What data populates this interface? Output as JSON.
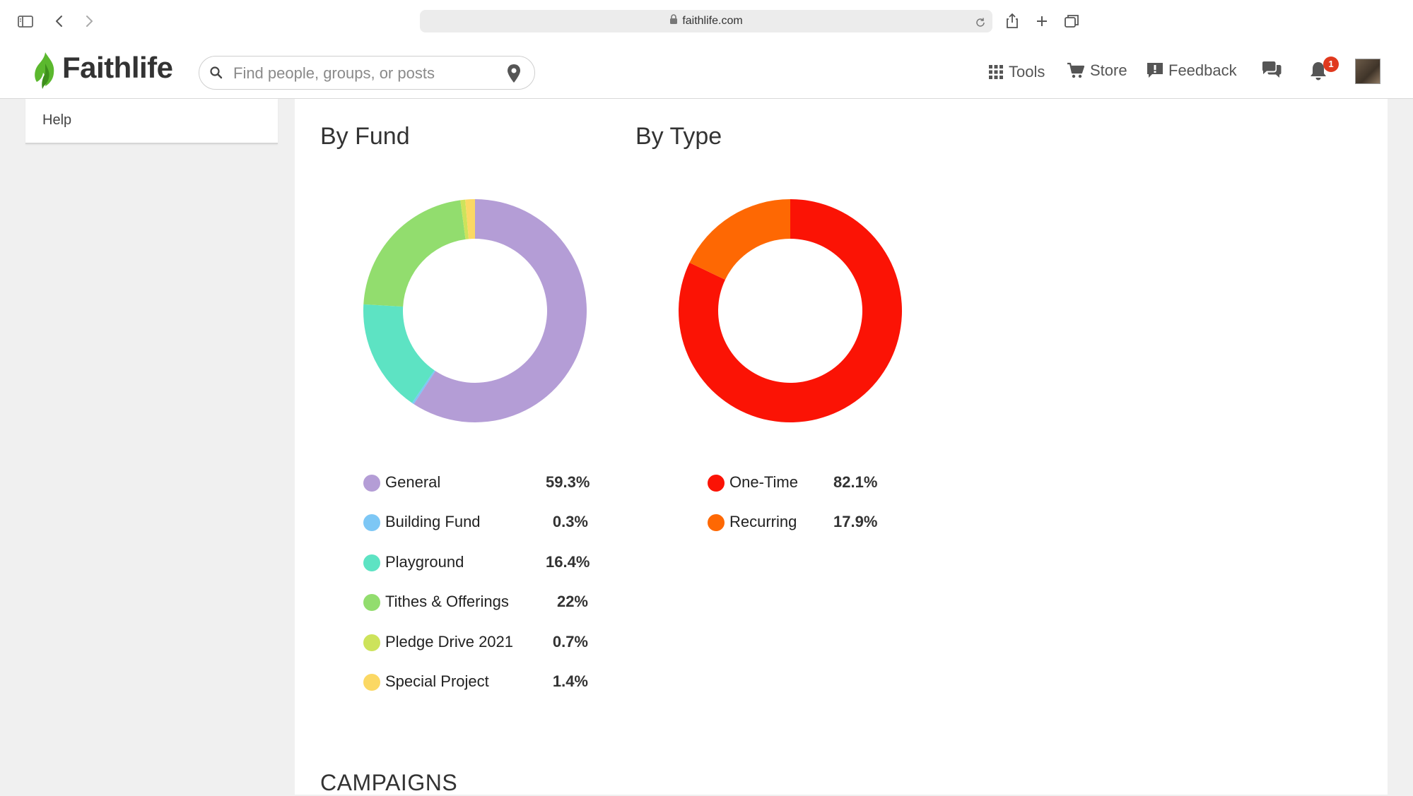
{
  "browser": {
    "url": "faithlife.com"
  },
  "header": {
    "brand": "Faithlife",
    "search_placeholder": "Find people, groups, or posts",
    "nav": {
      "tools": "Tools",
      "store": "Store",
      "feedback": "Feedback"
    },
    "notification_count": "1"
  },
  "sidebar": {
    "help": "Help"
  },
  "by_fund": {
    "title": "By Fund",
    "items": [
      {
        "label": "General",
        "percent": "59.3%",
        "color": "#b49dd6"
      },
      {
        "label": "Building Fund",
        "percent": "0.3%",
        "color": "#7dc7f5"
      },
      {
        "label": "Playground",
        "percent": "16.4%",
        "color": "#5de3c3"
      },
      {
        "label": "Tithes & Offerings",
        "percent": "22%",
        "color": "#92dd6e"
      },
      {
        "label": "Pledge Drive 2021",
        "percent": "0.7%",
        "color": "#cde35b"
      },
      {
        "label": "Special Project",
        "percent": "1.4%",
        "color": "#fbd864"
      }
    ]
  },
  "by_type": {
    "title": "By Type",
    "items": [
      {
        "label": "One-Time",
        "percent": "82.1%",
        "color": "#fb1305"
      },
      {
        "label": "Recurring",
        "percent": "17.9%",
        "color": "#fe6803"
      }
    ]
  },
  "campaigns_heading": "CAMPAIGNS",
  "chart_data": [
    {
      "type": "pie",
      "title": "By Fund",
      "categories": [
        "General",
        "Building Fund",
        "Playground",
        "Tithes & Offerings",
        "Pledge Drive 2021",
        "Special Project"
      ],
      "values": [
        59.3,
        0.3,
        16.4,
        22,
        0.7,
        1.4
      ],
      "colors": [
        "#b49dd6",
        "#7dc7f5",
        "#5de3c3",
        "#92dd6e",
        "#cde35b",
        "#fbd864"
      ],
      "donut": true
    },
    {
      "type": "pie",
      "title": "By Type",
      "categories": [
        "One-Time",
        "Recurring"
      ],
      "values": [
        82.1,
        17.9
      ],
      "colors": [
        "#fb1305",
        "#fe6803"
      ],
      "donut": true
    }
  ]
}
